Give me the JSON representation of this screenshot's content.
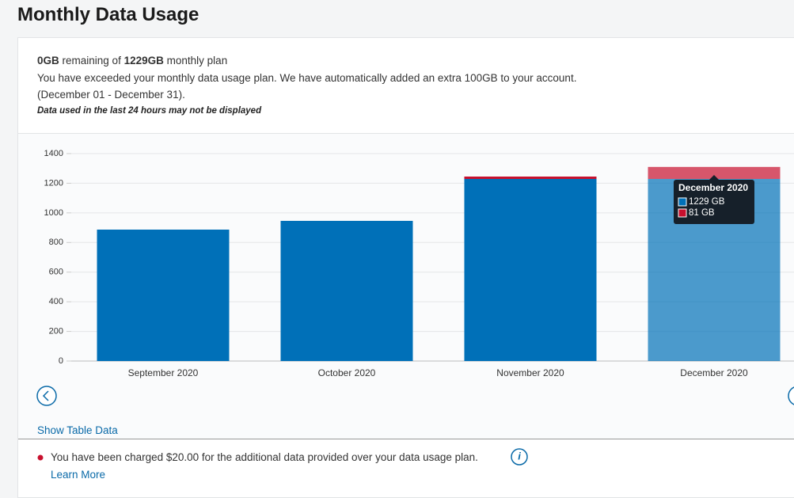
{
  "page": {
    "title": "Monthly Data Usage",
    "remaining": "0GB",
    "remaining_text": "remaining of",
    "plan": "1229GB",
    "plan_text": "monthly plan",
    "notice": "You have exceeded your monthly data usage plan. We have automatically added an extra 100GB to your account.",
    "period": "(December 01 - December 31).",
    "disclaimer": "Data used in the last 24 hours may not be displayed",
    "show_table": "Show Table Data",
    "charge_note": "You have been charged $20.00 for the additional data provided over your data usage plan.",
    "learn_more": "Learn More"
  },
  "chart_data": {
    "type": "bar",
    "stacked": true,
    "categories": [
      "September 2020",
      "October 2020",
      "November 2020",
      "December 2020"
    ],
    "series": [
      {
        "color": "#0070b8",
        "values": [
          887,
          946,
          1229,
          1229
        ],
        "value_labels": [
          null,
          null,
          null,
          "1229 GB"
        ]
      },
      {
        "color": "#c8102e",
        "values": [
          0,
          0,
          16,
          81
        ],
        "value_labels": [
          null,
          null,
          null,
          "81 GB"
        ]
      }
    ],
    "ylim": [
      0,
      1400
    ],
    "yticks": [
      0,
      200,
      400,
      600,
      800,
      1000,
      1200,
      1400
    ],
    "grid": true,
    "highlighted": 3
  }
}
